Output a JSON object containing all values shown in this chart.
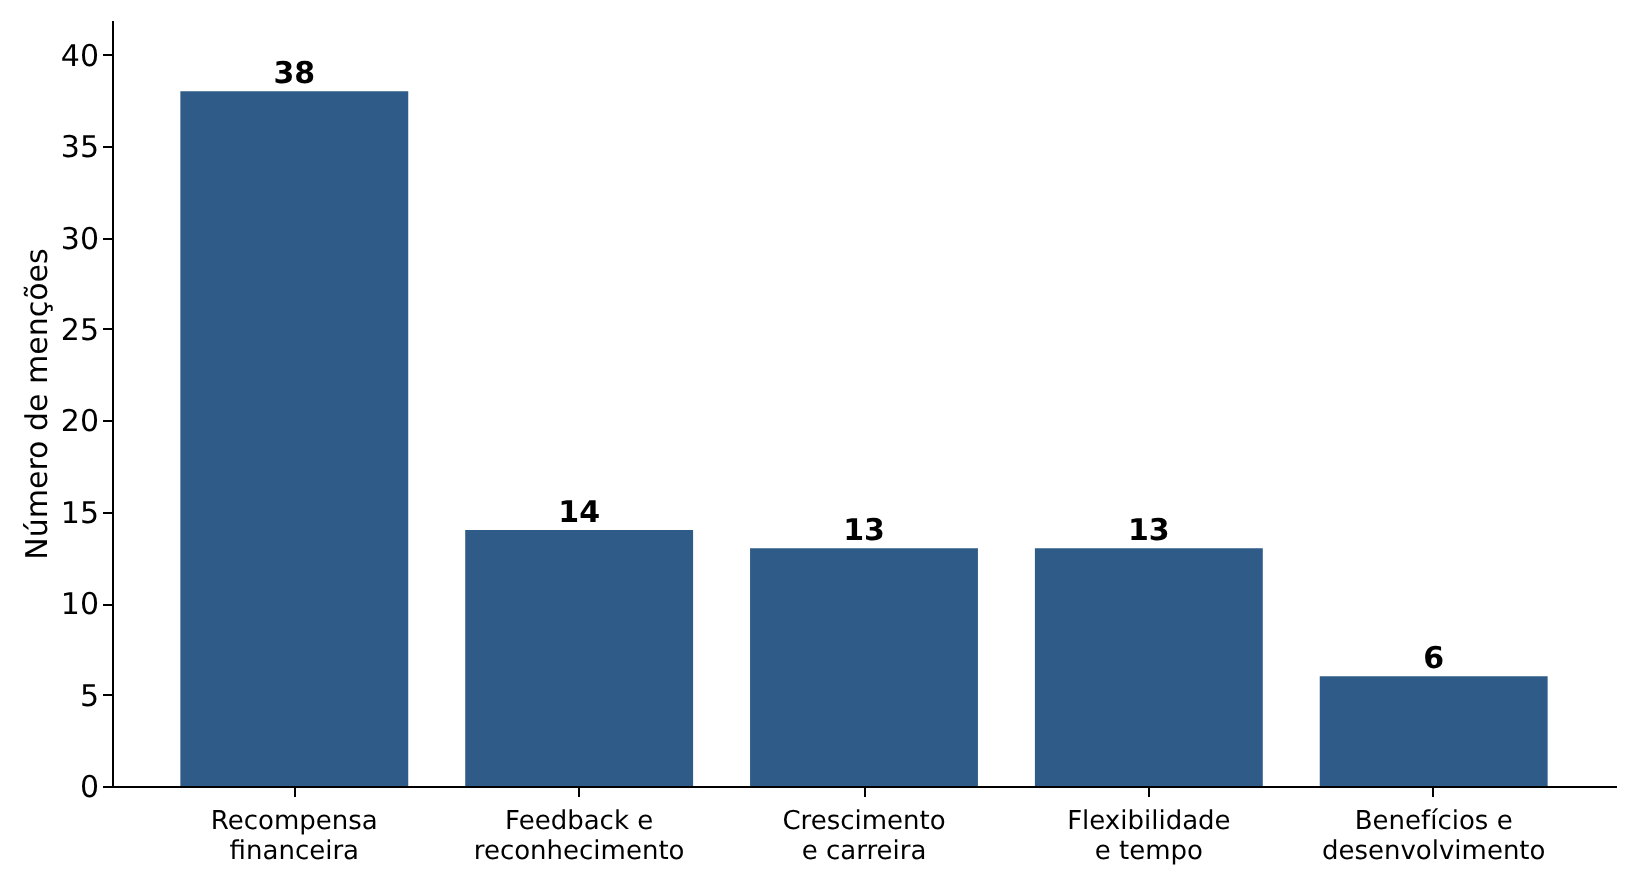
{
  "chart_data": {
    "type": "bar",
    "ylabel": "Número de menções",
    "categories": [
      "Recompensa\nfinanceira",
      "Feedback e\nreconhecimento",
      "Crescimento\ne carreira",
      "Flexibilidade\ne tempo",
      "Benefícios e\ndesenvolvimento"
    ],
    "values": [
      38,
      14,
      13,
      13,
      6
    ],
    "color": "#2e5b87",
    "ylim": [
      0,
      41.9
    ],
    "yticks": [
      0,
      5,
      10,
      15,
      20,
      25,
      30,
      35,
      40
    ],
    "grid": false,
    "data_labels": true
  }
}
